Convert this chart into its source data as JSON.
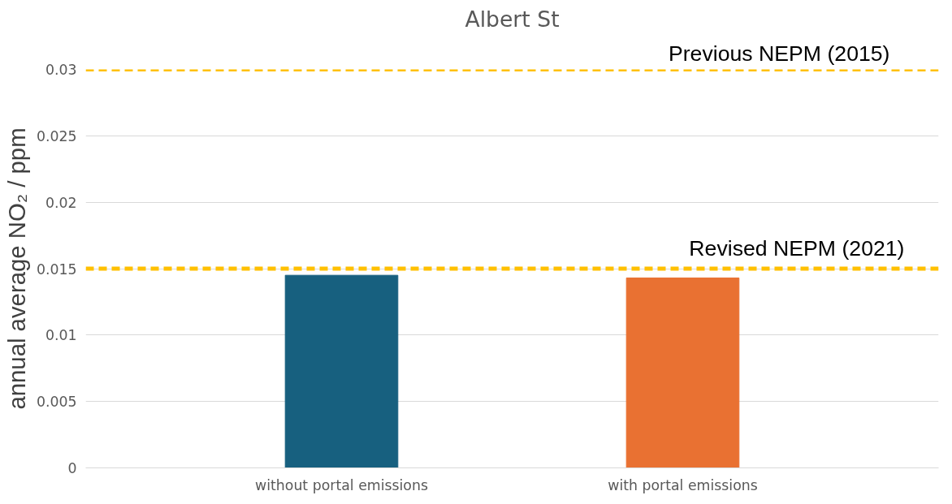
{
  "chart_data": {
    "type": "bar",
    "title": "Albert St",
    "ylabel": "annual average NO₂ / ppm",
    "categories": [
      "without portal emissions",
      "with portal emissions"
    ],
    "values": [
      0.0145,
      0.0143
    ],
    "colors": [
      "#17607f",
      "#e97132"
    ],
    "ylim": [
      0,
      0.03
    ],
    "yticks": [
      0,
      0.005,
      0.01,
      0.015,
      0.02,
      0.025,
      0.03
    ],
    "grid": "y",
    "ref_lines": [
      {
        "axis": "y",
        "value": 0.03,
        "label": "Previous NEPM (2015)",
        "color": "#ffc000",
        "line_style": "dashed"
      },
      {
        "axis": "y",
        "value": 0.015,
        "label": "Revised NEPM (2021)",
        "color": "#ffc000",
        "line_style": "dashed"
      }
    ]
  }
}
